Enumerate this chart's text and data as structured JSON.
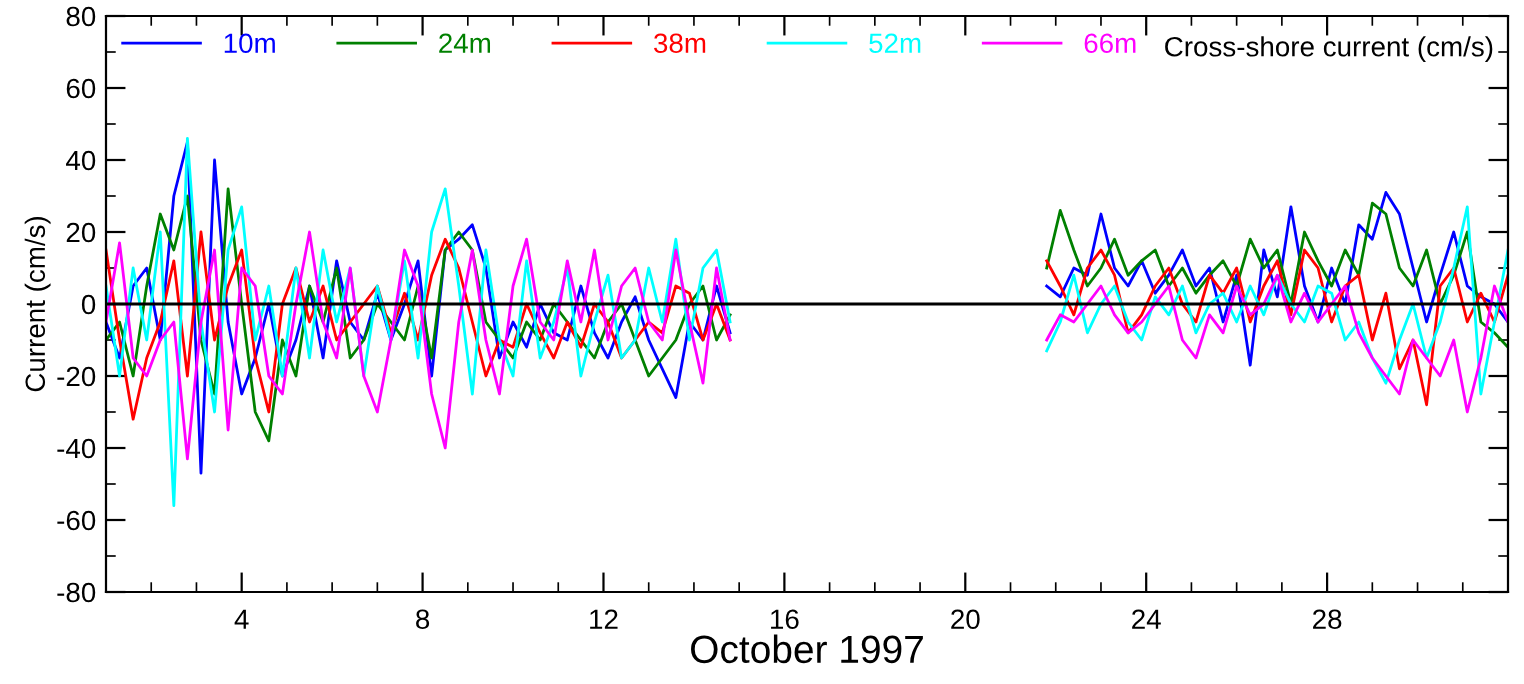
{
  "chart_data": {
    "type": "line",
    "xlabel": "October 1997",
    "ylabel": "Current (cm/s)",
    "annotations": [
      "Cross-shore current (cm/s)"
    ],
    "xlim": [
      1,
      32
    ],
    "ylim": [
      -80,
      80
    ],
    "xticks": [
      {
        "value": 1,
        "label": null
      },
      {
        "value": 2,
        "label": null
      },
      {
        "value": 3,
        "label": null
      },
      4,
      {
        "value": 5,
        "label": null
      },
      {
        "value": 6,
        "label": null
      },
      {
        "value": 7,
        "label": null
      },
      8,
      {
        "value": 9,
        "label": null
      },
      {
        "value": 10,
        "label": null
      },
      {
        "value": 11,
        "label": null
      },
      12,
      {
        "value": 13,
        "label": null
      },
      {
        "value": 14,
        "label": null
      },
      {
        "value": 15,
        "label": null
      },
      16,
      {
        "value": 17,
        "label": null
      },
      {
        "value": 18,
        "label": null
      },
      {
        "value": 19,
        "label": null
      },
      20,
      {
        "value": 21,
        "label": null
      },
      {
        "value": 22,
        "label": null
      },
      {
        "value": 23,
        "label": null
      },
      24,
      {
        "value": 25,
        "label": null
      },
      {
        "value": 26,
        "label": null
      },
      {
        "value": 27,
        "label": null
      },
      28,
      {
        "value": 29,
        "label": null
      },
      {
        "value": 30,
        "label": null
      },
      {
        "value": 31,
        "label": null
      }
    ],
    "yticks": [
      -80,
      {
        "value": -70,
        "label": null
      },
      -60,
      {
        "value": -50,
        "label": null
      },
      -40,
      {
        "value": -30,
        "label": null
      },
      -20,
      {
        "value": -10,
        "label": null
      },
      0,
      {
        "value": 10,
        "label": null
      },
      20,
      {
        "value": 30,
        "label": null
      },
      40,
      {
        "value": 50,
        "label": null
      },
      60,
      {
        "value": 70,
        "label": null
      },
      80
    ],
    "grid": false,
    "legend": "top left",
    "marker": "none",
    "line_style": "solid",
    "ref_lines": [
      {
        "axis": "y",
        "value": 0,
        "color": "#000000"
      }
    ],
    "x": [
      1.0,
      1.3,
      1.6,
      1.9,
      2.2,
      2.5,
      2.8,
      3.1,
      3.4,
      3.7,
      4.0,
      4.3,
      4.6,
      4.9,
      5.2,
      5.5,
      5.8,
      6.1,
      6.4,
      6.7,
      7.0,
      7.3,
      7.6,
      7.9,
      8.2,
      8.5,
      8.8,
      9.1,
      9.4,
      9.7,
      10.0,
      10.3,
      10.6,
      10.9,
      11.2,
      11.5,
      11.8,
      12.1,
      12.4,
      12.7,
      13.0,
      13.3,
      13.6,
      13.9,
      14.2,
      14.5,
      14.8,
      18.0,
      21.8,
      22.1,
      22.4,
      22.7,
      23.0,
      23.3,
      23.6,
      23.9,
      24.2,
      24.5,
      24.8,
      25.1,
      25.4,
      25.7,
      26.0,
      26.3,
      26.6,
      26.9,
      27.2,
      27.5,
      27.8,
      28.1,
      28.4,
      28.7,
      29.0,
      29.3,
      29.6,
      29.9,
      30.2,
      30.5,
      30.8,
      31.1,
      31.4,
      31.7,
      32.0
    ],
    "series": [
      {
        "name": "10m",
        "color": "#0000ff",
        "values": [
          -5,
          -15,
          5,
          10,
          -10,
          30,
          45,
          -47,
          40,
          -5,
          -25,
          -15,
          0,
          -20,
          -10,
          5,
          -15,
          12,
          -5,
          -10,
          3,
          -10,
          0,
          12,
          -20,
          15,
          18,
          22,
          10,
          -15,
          -5,
          -12,
          0,
          -8,
          -10,
          5,
          -8,
          -15,
          -5,
          2,
          -10,
          -18,
          -26,
          -5,
          -10,
          5,
          -8,
          null,
          5,
          2,
          10,
          8,
          25,
          10,
          5,
          12,
          3,
          8,
          15,
          5,
          10,
          -5,
          8,
          -17,
          15,
          2,
          27,
          5,
          -5,
          10,
          0,
          22,
          18,
          31,
          25,
          10,
          -5,
          8,
          20,
          5,
          2,
          0,
          -5
        ]
      },
      {
        "name": "24m",
        "color": "#008000",
        "values": [
          -10,
          -5,
          -20,
          5,
          25,
          15,
          30,
          -10,
          -25,
          32,
          0,
          -30,
          -38,
          -10,
          -20,
          5,
          -5,
          10,
          -15,
          -10,
          0,
          -5,
          -10,
          5,
          -15,
          15,
          20,
          15,
          -5,
          -10,
          -15,
          -5,
          -10,
          0,
          -5,
          -10,
          -15,
          -5,
          0,
          -10,
          -20,
          -15,
          -10,
          0,
          5,
          -10,
          -3,
          null,
          10,
          26,
          15,
          5,
          10,
          18,
          8,
          12,
          15,
          5,
          10,
          3,
          8,
          12,
          5,
          18,
          10,
          15,
          0,
          20,
          12,
          5,
          15,
          8,
          28,
          25,
          10,
          5,
          15,
          0,
          8,
          20,
          -5,
          -8,
          -12
        ]
      },
      {
        "name": "38m",
        "color": "#ff0000",
        "values": [
          15,
          -10,
          -32,
          -15,
          -5,
          12,
          -20,
          20,
          -10,
          5,
          15,
          -15,
          -30,
          0,
          10,
          -5,
          5,
          -10,
          -5,
          0,
          5,
          -8,
          3,
          -10,
          8,
          18,
          10,
          -5,
          -20,
          -10,
          -12,
          0,
          -8,
          -15,
          -5,
          -12,
          0,
          -5,
          -15,
          -10,
          -5,
          -8,
          5,
          3,
          -10,
          0,
          -10,
          null,
          12,
          5,
          -3,
          10,
          15,
          8,
          -8,
          -3,
          5,
          10,
          0,
          -5,
          8,
          3,
          10,
          -5,
          5,
          12,
          -3,
          15,
          10,
          -5,
          5,
          8,
          -10,
          3,
          -18,
          -10,
          -28,
          5,
          10,
          -5,
          3,
          -5,
          8
        ]
      },
      {
        "name": "52m",
        "color": "#00ffff",
        "values": [
          5,
          -20,
          10,
          -10,
          20,
          -56,
          46,
          -5,
          -30,
          15,
          27,
          -10,
          5,
          -20,
          10,
          -15,
          15,
          -5,
          10,
          -20,
          5,
          -10,
          12,
          -15,
          20,
          32,
          5,
          -25,
          15,
          -10,
          -20,
          12,
          -15,
          -5,
          10,
          -20,
          -5,
          8,
          -15,
          -10,
          10,
          -5,
          18,
          -10,
          10,
          15,
          -5,
          null,
          -13,
          -5,
          8,
          -8,
          0,
          5,
          -5,
          -10,
          2,
          -3,
          5,
          -8,
          0,
          3,
          -5,
          5,
          -3,
          8,
          0,
          -5,
          5,
          3,
          -10,
          -5,
          -15,
          -22,
          -10,
          0,
          -15,
          -5,
          10,
          27,
          -25,
          -5,
          15
        ]
      },
      {
        "name": "66m",
        "color": "#ff00ff",
        "values": [
          -5,
          17,
          -15,
          -20,
          -10,
          -5,
          -43,
          -5,
          15,
          -35,
          10,
          5,
          -20,
          -25,
          0,
          20,
          -5,
          -15,
          10,
          -20,
          -30,
          -10,
          15,
          5,
          -25,
          -40,
          -5,
          15,
          -10,
          -25,
          5,
          18,
          -5,
          -10,
          12,
          -5,
          15,
          -10,
          5,
          10,
          -5,
          -10,
          15,
          -5,
          -22,
          10,
          -10,
          null,
          -10,
          -3,
          -5,
          0,
          5,
          -3,
          -8,
          -5,
          0,
          5,
          -10,
          -15,
          -3,
          -8,
          5,
          -3,
          0,
          8,
          -5,
          3,
          -5,
          0,
          5,
          -8,
          -15,
          -20,
          -25,
          -10,
          -15,
          -20,
          -10,
          -30,
          -15,
          5,
          -5
        ]
      }
    ]
  }
}
